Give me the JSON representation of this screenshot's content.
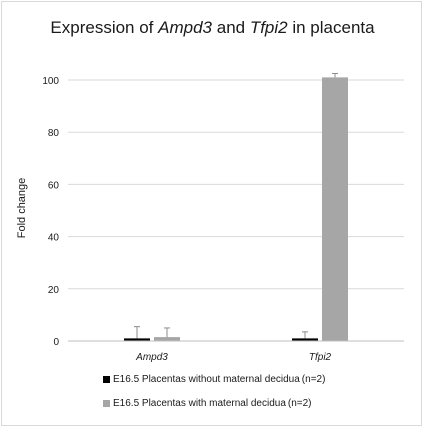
{
  "chart_data": {
    "type": "bar",
    "title_parts": [
      {
        "text": "Expression of ",
        "italic": false
      },
      {
        "text": "Ampd3",
        "italic": true
      },
      {
        "text": " and ",
        "italic": false
      },
      {
        "text": "Tfpi2",
        "italic": true
      },
      {
        "text": " in placenta",
        "italic": false
      }
    ],
    "ylabel": "Fold change",
    "xlabel": "",
    "categories": [
      "Ampd3",
      "Tfpi2"
    ],
    "ylim": [
      0,
      100
    ],
    "yticks": [
      "0",
      "20",
      "40",
      "60",
      "80",
      "100"
    ],
    "grid": true,
    "legend_position": "bottom",
    "series": [
      {
        "name": "E16.5 Placentas without maternal decidua",
        "n_label": "(n=2)",
        "color": "#000000",
        "values": [
          1,
          1
        ],
        "error_upper": [
          5.5,
          3.5
        ]
      },
      {
        "name": "E16.5 Placentas with maternal decidua",
        "n_label": "(n=2)",
        "color": "#a6a6a6",
        "values": [
          1.5,
          101
        ],
        "error_upper": [
          5,
          102.5
        ]
      }
    ]
  }
}
